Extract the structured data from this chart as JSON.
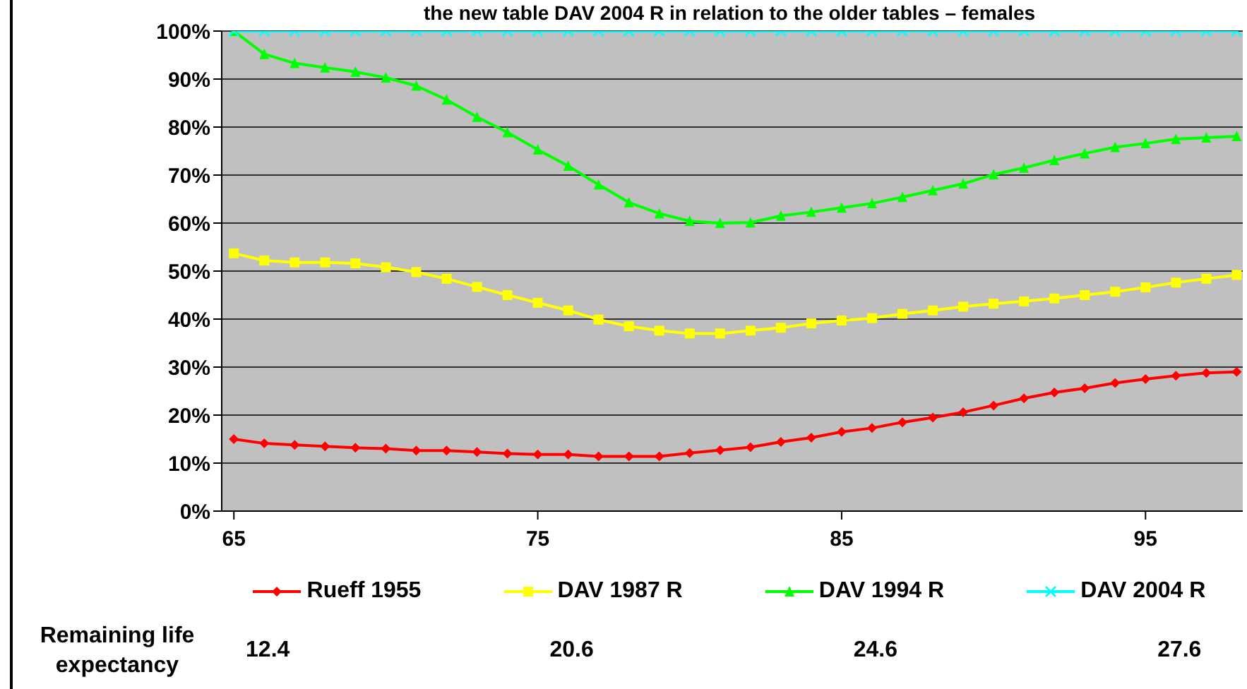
{
  "chart_data": {
    "type": "line",
    "title": "the new table DAV 2004 R in relation to the older tables – females",
    "x": [
      65,
      66,
      67,
      68,
      69,
      70,
      71,
      72,
      73,
      74,
      75,
      76,
      77,
      78,
      79,
      80,
      81,
      82,
      83,
      84,
      85,
      86,
      87,
      88,
      89,
      90,
      91,
      92,
      93,
      94,
      95,
      96,
      97,
      98
    ],
    "series": [
      {
        "name": "Rueff 1955",
        "color": "#ff0000",
        "marker": "diamond",
        "values": [
          15.0,
          14.1,
          13.8,
          13.5,
          13.2,
          13.0,
          12.6,
          12.6,
          12.3,
          12.0,
          11.8,
          11.8,
          11.4,
          11.4,
          11.4,
          12.1,
          12.7,
          13.3,
          14.4,
          15.3,
          16.5,
          17.3,
          18.5,
          19.5,
          20.6,
          22.0,
          23.5,
          24.7,
          25.6,
          26.7,
          27.5,
          28.2,
          28.8,
          29.0
        ]
      },
      {
        "name": "DAV 1987 R",
        "color": "#ffff00",
        "marker": "square",
        "values": [
          53.7,
          52.2,
          51.8,
          51.8,
          51.6,
          50.8,
          49.8,
          48.4,
          46.7,
          45.0,
          43.4,
          41.8,
          39.9,
          38.5,
          37.6,
          37.0,
          37.0,
          37.6,
          38.2,
          39.1,
          39.7,
          40.2,
          41.1,
          41.8,
          42.6,
          43.2,
          43.7,
          44.3,
          45.0,
          45.7,
          46.6,
          47.6,
          48.4,
          49.2
        ]
      },
      {
        "name": "DAV 1994 R",
        "color": "#00ff00",
        "marker": "triangle",
        "values": [
          100,
          95.2,
          93.3,
          92.4,
          91.5,
          90.3,
          88.6,
          85.7,
          82.1,
          78.9,
          75.3,
          71.9,
          68.0,
          64.3,
          62.0,
          60.4,
          60.0,
          60.1,
          61.5,
          62.3,
          63.2,
          64.1,
          65.4,
          66.8,
          68.2,
          70.1,
          71.5,
          73.1,
          74.5,
          75.8,
          76.6,
          77.5,
          77.8,
          78.1
        ]
      },
      {
        "name": "DAV 2004 R",
        "color": "#00ffff",
        "marker": "cross",
        "values": [
          100,
          100,
          100,
          100,
          100,
          100,
          100,
          100,
          100,
          100,
          100,
          100,
          100,
          100,
          100,
          100,
          100,
          100,
          100,
          100,
          100,
          100,
          100,
          100,
          100,
          100,
          100,
          100,
          100,
          100,
          100,
          100,
          100,
          100
        ]
      }
    ],
    "xlim": [
      64.6,
      98.2
    ],
    "xticks": [
      65,
      75,
      85,
      95
    ],
    "ylim": [
      0,
      100
    ],
    "yticks": [
      {
        "value": 0,
        "label": "0%"
      },
      {
        "value": 10,
        "label": "10%"
      },
      {
        "value": 20,
        "label": "20%"
      },
      {
        "value": 30,
        "label": "30%"
      },
      {
        "value": 40,
        "label": "40%"
      },
      {
        "value": 50,
        "label": "50%"
      },
      {
        "value": 60,
        "label": "60%"
      },
      {
        "value": 70,
        "label": "70%"
      },
      {
        "value": 80,
        "label": "80%"
      },
      {
        "value": 90,
        "label": "90%"
      },
      {
        "value": 100,
        "label": "100%"
      }
    ],
    "grid": "y",
    "legend": "bottom",
    "annotations": [
      "Remaining life expectancy",
      "12.4",
      "20.6",
      "24.6",
      "27.6"
    ]
  }
}
